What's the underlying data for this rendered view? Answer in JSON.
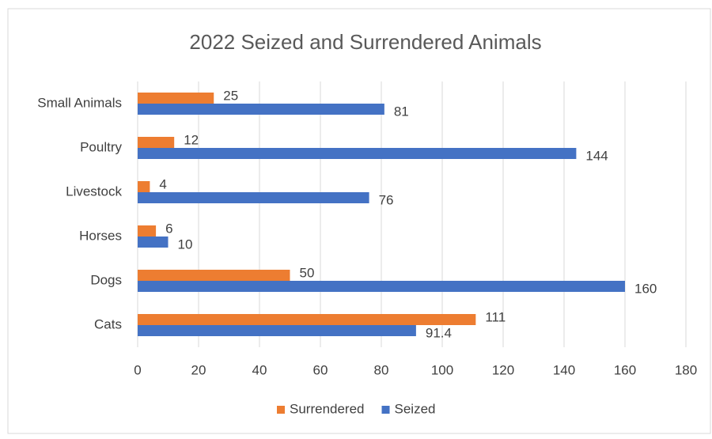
{
  "chart_data": {
    "type": "bar",
    "orientation": "horizontal",
    "title": "2022 Seized and Surrendered Animals",
    "categories": [
      "Cats",
      "Dogs",
      "Horses",
      "Livestock",
      "Poultry",
      "Small Animals"
    ],
    "series": [
      {
        "name": "Surrendered",
        "color": "#ed7d31",
        "values": [
          111,
          50,
          6,
          4,
          12,
          25
        ]
      },
      {
        "name": "Seized",
        "color": "#4472c4",
        "values": [
          91.4,
          160,
          10,
          76,
          144,
          81
        ]
      }
    ],
    "xlim": [
      0,
      180
    ],
    "xticks": [
      0,
      20,
      40,
      60,
      80,
      100,
      120,
      140,
      160,
      180
    ],
    "grid": true,
    "legend": "bottom"
  }
}
